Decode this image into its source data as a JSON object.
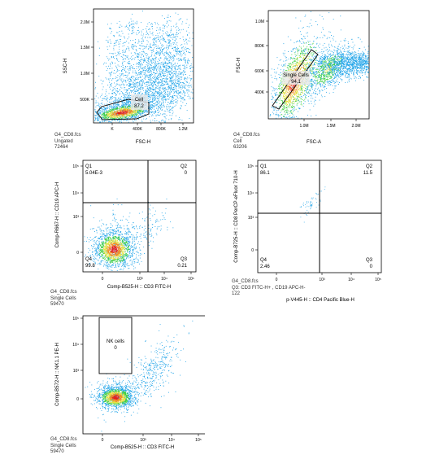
{
  "chart_data": [
    {
      "type": "scatter",
      "file": "G4_CD8.fcs",
      "population": "Ungated",
      "count": "72464",
      "xlabel": "FSC-H",
      "ylabel": "SSC-H",
      "x_ticks": [
        "K",
        "400K",
        "800K",
        "1.2M"
      ],
      "y_ticks": [
        "500K",
        "1.0M",
        "1.5M",
        "2.0M"
      ],
      "gates": [
        {
          "name": "Cell",
          "value": "87.2"
        }
      ]
    },
    {
      "type": "scatter",
      "file": "G4_CD8.fcs",
      "population": "Cell",
      "count": "63206",
      "xlabel": "FSC-A",
      "ylabel": "FSC-H",
      "x_ticks": [
        "1.0M",
        "1.5M",
        "2.0M"
      ],
      "y_ticks": [
        "400K",
        "600K",
        "800K",
        "1.0M"
      ],
      "gates": [
        {
          "name": "Single Cells",
          "value": "94.1"
        }
      ]
    },
    {
      "type": "scatter",
      "file": "G4_CD8.fcs",
      "population": "Single Cells",
      "count": "59470",
      "xlabel": "Comp-B525-H :: CD3 FITC-H",
      "ylabel": "Comp-R667-H :: CD19 APC-H",
      "x_ticks": [
        "0",
        "10³",
        "10⁴",
        "10⁵"
      ],
      "y_ticks": [
        "0",
        "10³",
        "10⁴",
        "10⁵"
      ],
      "quadrants": [
        {
          "name": "Q1",
          "value": "5.04E-3"
        },
        {
          "name": "Q2",
          "value": "0"
        },
        {
          "name": "Q3",
          "value": "0.21"
        },
        {
          "name": "Q4",
          "value": "99.8"
        }
      ]
    },
    {
      "type": "scatter",
      "file": "G4_CD8.fcs",
      "population": "Q3: CD3 FITC-H+ , CD19 APC-H-",
      "count": "122",
      "xlabel": "p-V445-H :: CD4 Pacific Blue-H",
      "ylabel": "Comp-B725-H :: CD8 PerCP-eFluor 710-H",
      "x_ticks": [
        "0",
        "10³",
        "10⁴",
        "10⁵"
      ],
      "y_ticks": [
        "0",
        "10³",
        "10⁴",
        "10⁵"
      ],
      "quadrants": [
        {
          "name": "Q1",
          "value": "86.1"
        },
        {
          "name": "Q2",
          "value": "11.5"
        },
        {
          "name": "Q3",
          "value": "0"
        },
        {
          "name": "Q4",
          "value": "2.46"
        }
      ]
    },
    {
      "type": "scatter",
      "file": "G4_CD8.fcs",
      "population": "Single Cells",
      "count": "59470",
      "xlabel": "Comp-B525-H :: CD3 FITC-H",
      "ylabel": "Comp-B572-H :: NK1.1 PE-H",
      "x_ticks": [
        "0",
        "10³",
        "10⁴",
        "10⁵"
      ],
      "y_ticks": [
        "0",
        "10³",
        "10⁴",
        "10⁵"
      ],
      "gates": [
        {
          "name": "NK cells",
          "value": "0"
        }
      ]
    }
  ]
}
